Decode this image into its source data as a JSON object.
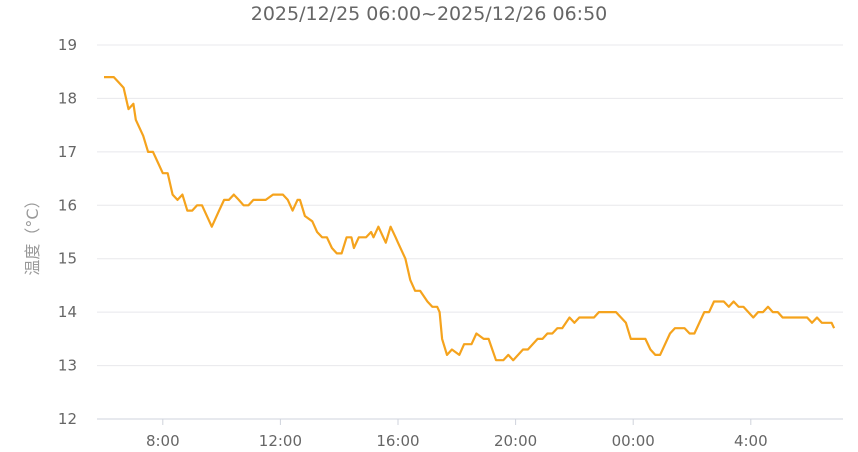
{
  "chart_data": {
    "type": "line",
    "title": "2025/12/25 06:00~2025/12/26 06:50",
    "xlabel": "",
    "ylabel": "温度（°C）",
    "ylim": [
      12,
      19
    ],
    "yticks": [
      "12",
      "13",
      "14",
      "15",
      "16",
      "17",
      "18",
      "19"
    ],
    "xlim": [
      "2025-12-25 06:00",
      "2025-12-26 07:10"
    ],
    "xticks": [
      {
        "label": "8:00",
        "time": "2025-12-25 08:00"
      },
      {
        "label": "12:00",
        "time": "2025-12-25 12:00"
      },
      {
        "label": "16:00",
        "time": "2025-12-25 16:00"
      },
      {
        "label": "20:00",
        "time": "2025-12-25 20:00"
      },
      {
        "label": "00:00",
        "time": "2025-12-26 00:00"
      },
      {
        "label": "4:00",
        "time": "2025-12-26 04:00"
      }
    ],
    "grid": true,
    "color": "#f5a31d",
    "x": [
      "06:00",
      "06:20",
      "06:30",
      "06:40",
      "06:50",
      "07:00",
      "07:05",
      "07:20",
      "07:30",
      "07:40",
      "07:50",
      "08:00",
      "08:10",
      "08:20",
      "08:30",
      "08:40",
      "08:50",
      "09:00",
      "09:10",
      "09:20",
      "09:40",
      "09:55",
      "10:05",
      "10:15",
      "10:25",
      "10:35",
      "10:45",
      "10:55",
      "11:05",
      "11:30",
      "11:45",
      "12:05",
      "12:15",
      "12:25",
      "12:35",
      "12:40",
      "12:50",
      "13:05",
      "13:15",
      "13:25",
      "13:35",
      "13:45",
      "13:55",
      "14:05",
      "14:15",
      "14:25",
      "14:30",
      "14:40",
      "14:55",
      "15:05",
      "15:10",
      "15:20",
      "15:35",
      "15:45",
      "15:55",
      "16:00",
      "16:15",
      "16:25",
      "16:35",
      "16:45",
      "17:00",
      "17:10",
      "17:20",
      "17:25",
      "17:30",
      "17:40",
      "17:50",
      "18:05",
      "18:15",
      "18:30",
      "18:40",
      "18:55",
      "19:05",
      "19:20",
      "19:35",
      "19:45",
      "19:55",
      "20:15",
      "20:25",
      "20:45",
      "20:55",
      "21:05",
      "21:15",
      "21:25",
      "21:35",
      "21:50",
      "22:00",
      "22:10",
      "22:40",
      "22:50",
      "23:25",
      "23:45",
      "23:55",
      "00:25",
      "00:35",
      "00:45",
      "00:55",
      "01:15",
      "01:25",
      "01:45",
      "01:55",
      "02:05",
      "02:25",
      "02:35",
      "02:45",
      "03:05",
      "03:15",
      "03:25",
      "03:35",
      "03:45",
      "04:05",
      "04:15",
      "04:25",
      "04:35",
      "04:45",
      "04:55",
      "05:05",
      "05:55",
      "06:05",
      "06:15",
      "06:25",
      "06:45",
      "06:50"
    ],
    "values": [
      18.4,
      18.4,
      18.3,
      18.2,
      17.8,
      17.9,
      17.6,
      17.3,
      17.0,
      17.0,
      16.8,
      16.6,
      16.6,
      16.2,
      16.1,
      16.2,
      15.9,
      15.9,
      16.0,
      16.0,
      15.6,
      15.9,
      16.1,
      16.1,
      16.2,
      16.1,
      16.0,
      16.0,
      16.1,
      16.1,
      16.2,
      16.2,
      16.1,
      15.9,
      16.1,
      16.1,
      15.8,
      15.7,
      15.5,
      15.4,
      15.4,
      15.2,
      15.1,
      15.1,
      15.4,
      15.4,
      15.2,
      15.4,
      15.4,
      15.5,
      15.4,
      15.6,
      15.3,
      15.6,
      15.4,
      15.3,
      15.0,
      14.6,
      14.4,
      14.4,
      14.2,
      14.1,
      14.1,
      14.0,
      13.5,
      13.2,
      13.3,
      13.2,
      13.4,
      13.4,
      13.6,
      13.5,
      13.5,
      13.1,
      13.1,
      13.2,
      13.1,
      13.3,
      13.3,
      13.5,
      13.5,
      13.6,
      13.6,
      13.7,
      13.7,
      13.9,
      13.8,
      13.9,
      13.9,
      14.0,
      14.0,
      13.8,
      13.5,
      13.5,
      13.3,
      13.2,
      13.2,
      13.6,
      13.7,
      13.7,
      13.6,
      13.6,
      14.0,
      14.0,
      14.2,
      14.2,
      14.1,
      14.2,
      14.1,
      14.1,
      13.9,
      14.0,
      14.0,
      14.1,
      14.0,
      14.0,
      13.9,
      13.9,
      13.8,
      13.9,
      13.8,
      13.8,
      13.7
    ]
  }
}
